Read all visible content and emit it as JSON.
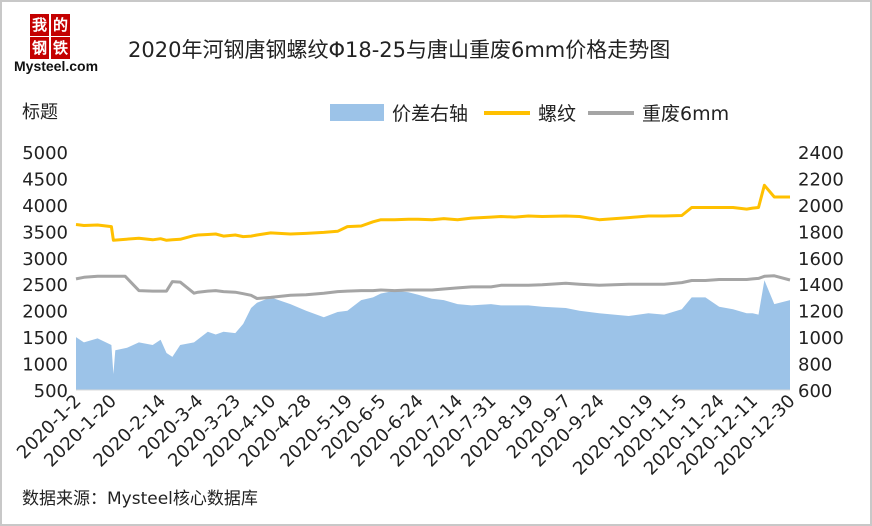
{
  "logo": {
    "chars": [
      "我",
      "的",
      "钢",
      "铁"
    ],
    "brand": "Mysteel.com"
  },
  "source": "数据来源：Mysteel核心数据库",
  "colors": {
    "area": "#9cc3e8",
    "rebar": "#ffc000",
    "scrap": "#a5a5a5",
    "text": "#222222"
  },
  "chart_data": {
    "type": "line",
    "title": "2020年河钢唐钢螺纹Φ18-25与唐山重废6mm价格走势图",
    "ylabel": "标题",
    "ylim": [
      500,
      5000
    ],
    "y_ticks": [
      "500",
      "1000",
      "1500",
      "2000",
      "2500",
      "3000",
      "3500",
      "4000",
      "4500",
      "5000"
    ],
    "y2lim": [
      600,
      2400
    ],
    "y2_ticks": [
      "600",
      "800",
      "1000",
      "1200",
      "1400",
      "1600",
      "1800",
      "2000",
      "2200",
      "2400"
    ],
    "x_ticks": [
      "2020-1-2",
      "2020-1-20",
      "2020-2-14",
      "2020-3-4",
      "2020-3-23",
      "2020-4-10",
      "2020-4-28",
      "2020-5-19",
      "2020-6-5",
      "2020-6-24",
      "2020-7-14",
      "2020-7-31",
      "2020-8-19",
      "2020-9-7",
      "2020-9-24",
      "2020-10-19",
      "2020-11-5",
      "2020-11-24",
      "2020-12-11",
      "2020-12-30"
    ],
    "legend_position": "top-right",
    "grid": false,
    "series": [
      {
        "name": "价差右轴",
        "type": "area",
        "axis": "right",
        "x": [
          "2020-1-2",
          "2020-1-6",
          "2020-1-13",
          "2020-1-20",
          "2020-1-21",
          "2020-1-22",
          "2020-1-28",
          "2020-2-3",
          "2020-2-10",
          "2020-2-14",
          "2020-2-17",
          "2020-2-20",
          "2020-2-24",
          "2020-3-2",
          "2020-3-9",
          "2020-3-13",
          "2020-3-17",
          "2020-3-23",
          "2020-3-27",
          "2020-3-31",
          "2020-4-3",
          "2020-4-10",
          "2020-4-20",
          "2020-4-28",
          "2020-5-7",
          "2020-5-14",
          "2020-5-19",
          "2020-5-26",
          "2020-6-1",
          "2020-6-5",
          "2020-6-12",
          "2020-6-19",
          "2020-6-24",
          "2020-7-1",
          "2020-7-7",
          "2020-7-14",
          "2020-7-21",
          "2020-7-31",
          "2020-8-5",
          "2020-8-12",
          "2020-8-19",
          "2020-8-26",
          "2020-9-7",
          "2020-9-14",
          "2020-9-24",
          "2020-10-9",
          "2020-10-19",
          "2020-10-27",
          "2020-11-5",
          "2020-11-10",
          "2020-11-17",
          "2020-11-24",
          "2020-12-1",
          "2020-12-8",
          "2020-12-11",
          "2020-12-14",
          "2020-12-17",
          "2020-12-22",
          "2020-12-30"
        ],
        "values": [
          1000,
          960,
          990,
          940,
          720,
          900,
          920,
          960,
          940,
          980,
          880,
          850,
          940,
          960,
          1040,
          1020,
          1040,
          1030,
          1100,
          1220,
          1260,
          1300,
          1250,
          1200,
          1150,
          1190,
          1200,
          1280,
          1300,
          1330,
          1350,
          1340,
          1320,
          1290,
          1280,
          1250,
          1240,
          1250,
          1240,
          1240,
          1240,
          1230,
          1220,
          1200,
          1180,
          1160,
          1180,
          1170,
          1210,
          1300,
          1300,
          1230,
          1210,
          1180,
          1180,
          1170,
          1430,
          1250,
          1280
        ]
      },
      {
        "name": "螺纹",
        "type": "line",
        "axis": "left",
        "x": [
          "2020-1-2",
          "2020-1-6",
          "2020-1-13",
          "2020-1-20",
          "2020-1-21",
          "2020-2-3",
          "2020-2-10",
          "2020-2-14",
          "2020-2-17",
          "2020-2-20",
          "2020-2-24",
          "2020-3-2",
          "2020-3-4",
          "2020-3-9",
          "2020-3-13",
          "2020-3-17",
          "2020-3-23",
          "2020-3-27",
          "2020-3-31",
          "2020-4-3",
          "2020-4-10",
          "2020-4-20",
          "2020-4-28",
          "2020-5-7",
          "2020-5-14",
          "2020-5-19",
          "2020-5-26",
          "2020-6-1",
          "2020-6-5",
          "2020-6-12",
          "2020-6-19",
          "2020-6-24",
          "2020-7-1",
          "2020-7-7",
          "2020-7-14",
          "2020-7-21",
          "2020-7-31",
          "2020-8-5",
          "2020-8-12",
          "2020-8-19",
          "2020-8-26",
          "2020-9-7",
          "2020-9-14",
          "2020-9-24",
          "2020-10-9",
          "2020-10-19",
          "2020-10-27",
          "2020-11-5",
          "2020-11-10",
          "2020-11-17",
          "2020-11-24",
          "2020-12-1",
          "2020-12-8",
          "2020-12-11",
          "2020-12-14",
          "2020-12-17",
          "2020-12-22",
          "2020-12-30"
        ],
        "values": [
          3630,
          3610,
          3620,
          3590,
          3330,
          3370,
          3340,
          3360,
          3330,
          3340,
          3350,
          3420,
          3430,
          3440,
          3450,
          3410,
          3430,
          3400,
          3410,
          3430,
          3470,
          3450,
          3460,
          3480,
          3500,
          3590,
          3600,
          3680,
          3720,
          3720,
          3730,
          3730,
          3720,
          3740,
          3720,
          3750,
          3770,
          3780,
          3770,
          3790,
          3780,
          3790,
          3780,
          3720,
          3760,
          3790,
          3790,
          3800,
          3950,
          3950,
          3950,
          3950,
          3920,
          3940,
          3950,
          4370,
          4150,
          4150
        ]
      },
      {
        "name": "重废6mm",
        "type": "line",
        "axis": "left",
        "x": [
          "2020-1-2",
          "2020-1-6",
          "2020-1-13",
          "2020-1-20",
          "2020-1-27",
          "2020-2-3",
          "2020-2-10",
          "2020-2-14",
          "2020-2-17",
          "2020-2-20",
          "2020-2-24",
          "2020-3-2",
          "2020-3-4",
          "2020-3-9",
          "2020-3-13",
          "2020-3-17",
          "2020-3-23",
          "2020-3-27",
          "2020-3-31",
          "2020-4-3",
          "2020-4-10",
          "2020-4-20",
          "2020-4-28",
          "2020-5-7",
          "2020-5-14",
          "2020-5-19",
          "2020-5-26",
          "2020-6-1",
          "2020-6-5",
          "2020-6-12",
          "2020-6-19",
          "2020-6-24",
          "2020-7-1",
          "2020-7-7",
          "2020-7-14",
          "2020-7-21",
          "2020-7-31",
          "2020-8-5",
          "2020-8-12",
          "2020-8-19",
          "2020-8-26",
          "2020-9-7",
          "2020-9-14",
          "2020-9-24",
          "2020-10-9",
          "2020-10-19",
          "2020-10-27",
          "2020-11-5",
          "2020-11-10",
          "2020-11-17",
          "2020-11-24",
          "2020-12-1",
          "2020-12-8",
          "2020-12-11",
          "2020-12-14",
          "2020-12-17",
          "2020-12-22",
          "2020-12-30"
        ],
        "values": [
          2600,
          2630,
          2650,
          2650,
          2650,
          2380,
          2370,
          2370,
          2370,
          2550,
          2540,
          2330,
          2350,
          2370,
          2380,
          2360,
          2350,
          2320,
          2290,
          2230,
          2250,
          2290,
          2300,
          2330,
          2360,
          2370,
          2380,
          2380,
          2390,
          2380,
          2390,
          2390,
          2390,
          2410,
          2430,
          2450,
          2450,
          2480,
          2480,
          2480,
          2490,
          2520,
          2500,
          2480,
          2500,
          2500,
          2500,
          2530,
          2570,
          2570,
          2590,
          2590,
          2590,
          2600,
          2610,
          2650,
          2660,
          2580
        ]
      }
    ]
  }
}
